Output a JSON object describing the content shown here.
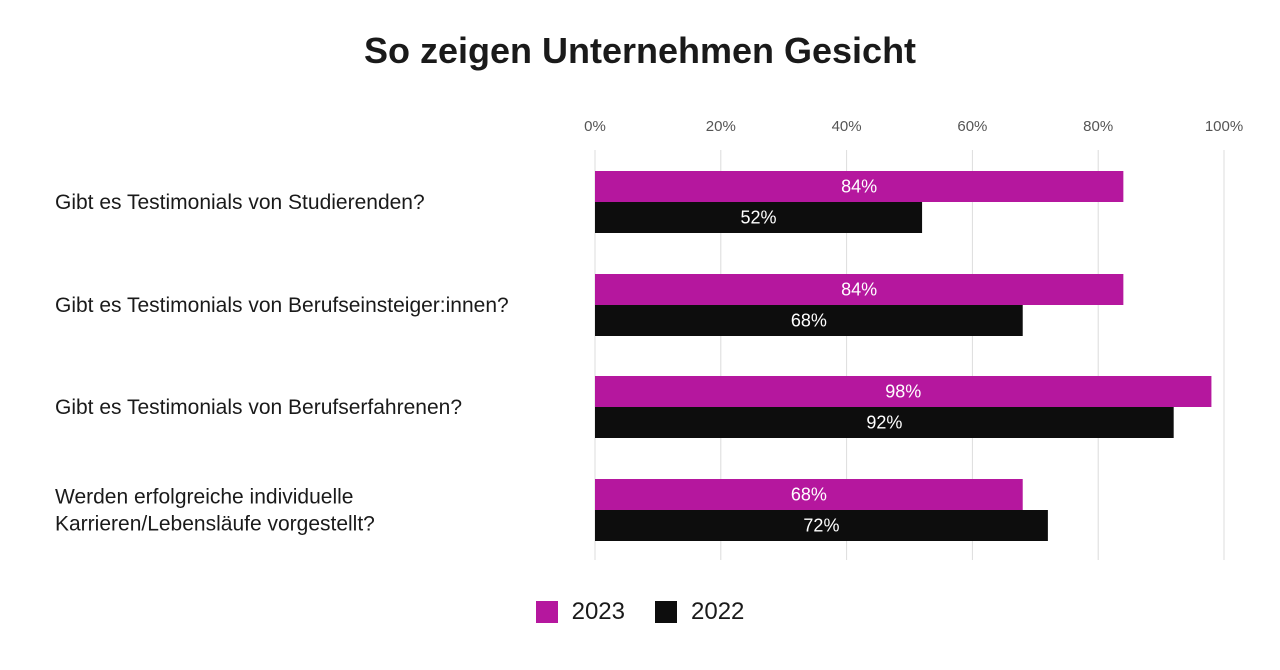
{
  "chart_data": {
    "type": "bar",
    "orientation": "horizontal",
    "title": "So zeigen Unternehmen Gesicht",
    "categories": [
      [
        "Gibt es Testimonials von Studierenden?"
      ],
      [
        "Gibt es Testimonials von Berufseinsteiger:innen?"
      ],
      [
        "Gibt es Testimonials von Berufserfahrenen?"
      ],
      [
        "Werden erfolgreiche individuelle",
        "Karrieren/Lebensläufe vorgestellt?"
      ]
    ],
    "series": [
      {
        "name": "2023",
        "color": "#b5179e",
        "values": [
          84,
          84,
          98,
          68
        ],
        "labels": [
          "84%",
          "84%",
          "98%",
          "68%"
        ]
      },
      {
        "name": "2022",
        "color": "#0d0d0d",
        "values": [
          52,
          68,
          92,
          72
        ],
        "labels": [
          "52%",
          "68%",
          "92%",
          "72%"
        ]
      }
    ],
    "xlim": [
      0,
      100
    ],
    "xticks": [
      "0%",
      "20%",
      "40%",
      "60%",
      "80%",
      "100%"
    ],
    "grid": true,
    "legend_position": "bottom-center"
  }
}
